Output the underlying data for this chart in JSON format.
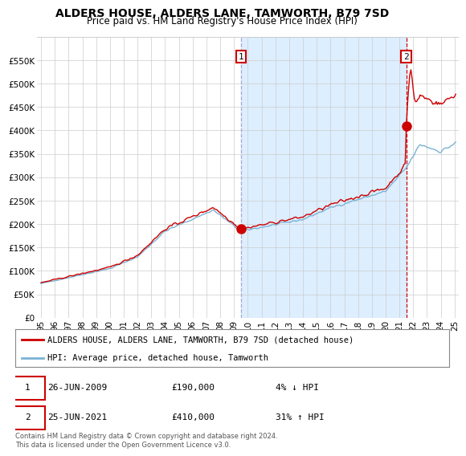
{
  "title": "ALDERS HOUSE, ALDERS LANE, TAMWORTH, B79 7SD",
  "subtitle": "Price paid vs. HM Land Registry's House Price Index (HPI)",
  "ylim": [
    0,
    600000
  ],
  "yticks": [
    0,
    50000,
    100000,
    150000,
    200000,
    250000,
    300000,
    350000,
    400000,
    450000,
    500000,
    550000
  ],
  "xlim_start": 1994.7,
  "xlim_end": 2025.3,
  "xtick_years": [
    1995,
    1996,
    1997,
    1998,
    1999,
    2000,
    2001,
    2002,
    2003,
    2004,
    2005,
    2006,
    2007,
    2008,
    2009,
    2010,
    2011,
    2012,
    2013,
    2014,
    2015,
    2016,
    2017,
    2018,
    2019,
    2020,
    2021,
    2022,
    2023,
    2024,
    2025
  ],
  "sale1_year": 2009.49,
  "sale1_value": 190000,
  "sale2_year": 2021.49,
  "sale2_value": 410000,
  "sale1_label": "1",
  "sale2_label": "2",
  "sale1_date": "26-JUN-2009",
  "sale1_price": "£190,000",
  "sale1_hpi_text": "4% ↓ HPI",
  "sale2_date": "25-JUN-2021",
  "sale2_price": "£410,000",
  "sale2_hpi_text": "31% ↑ HPI",
  "line_color_prop": "#cc0000",
  "line_color_hpi": "#7ab3d4",
  "shade_color": "#ddeeff",
  "dashed1_color": "#aaaacc",
  "dashed2_color": "#cc0000",
  "legend_label_prop": "ALDERS HOUSE, ALDERS LANE, TAMWORTH, B79 7SD (detached house)",
  "legend_label_hpi": "HPI: Average price, detached house, Tamworth",
  "footnote": "Contains HM Land Registry data © Crown copyright and database right 2024.\nThis data is licensed under the Open Government Licence v3.0.",
  "background_color": "#ffffff",
  "grid_color": "#cccccc",
  "title_fontsize": 10,
  "subtitle_fontsize": 8.5,
  "tick_fontsize": 7.5,
  "legend_fontsize": 7.5
}
